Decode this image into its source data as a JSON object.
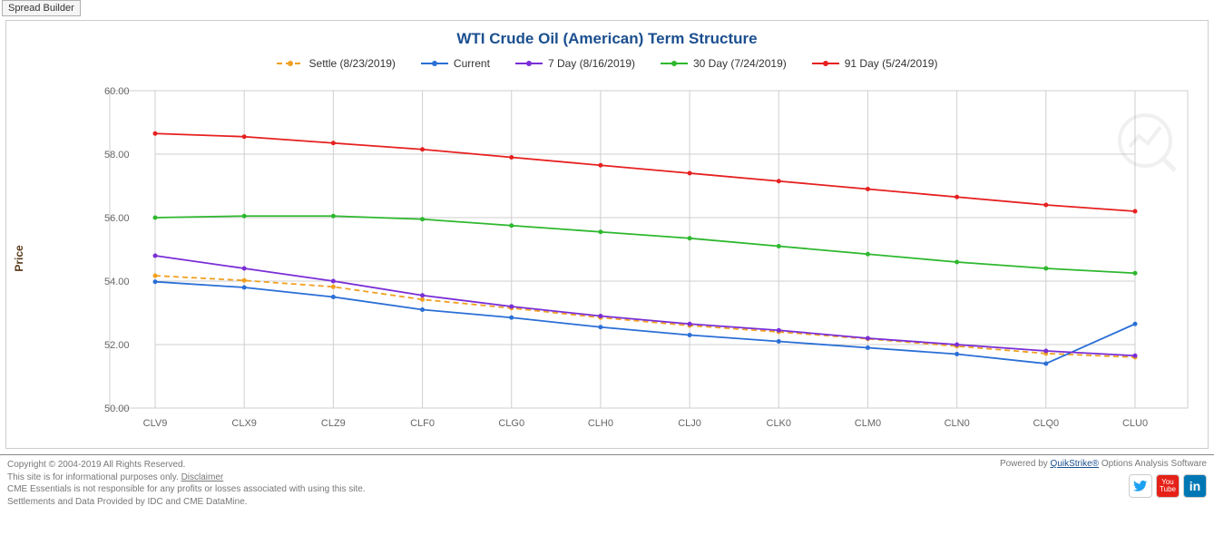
{
  "toolbar": {
    "spread_builder_label": "Spread Builder"
  },
  "chart": {
    "title": "WTI Crude Oil (American) Term Structure",
    "y_axis_label": "Price",
    "y_axis_label_color": "#5a3a1a",
    "categories": [
      "CLV9",
      "CLX9",
      "CLZ9",
      "CLF0",
      "CLG0",
      "CLH0",
      "CLJ0",
      "CLK0",
      "CLM0",
      "CLN0",
      "CLQ0",
      "CLU0"
    ],
    "y_min": 50.0,
    "y_max": 60.0,
    "y_tick_step": 2.0,
    "y_tick_decimals": 2,
    "grid_color": "#cfcfcf",
    "axis_color": "#888888",
    "tick_label_color": "#666666",
    "tick_label_fontsize": 11,
    "background_color": "#ffffff",
    "plot_inner_width": 1080,
    "plot_inner_height": 350,
    "plot_left_pad": 120,
    "plot_right_pad": 60,
    "marker_radius": 2.5,
    "line_width": 1.8,
    "series": [
      {
        "name": "Settle (8/23/2019)",
        "color": "#f0a020",
        "dash": "6,4",
        "values": [
          54.17,
          54.02,
          53.82,
          53.42,
          53.15,
          52.85,
          52.6,
          52.4,
          52.18,
          51.95,
          51.72,
          51.6
        ]
      },
      {
        "name": "Current",
        "color": "#2a6fd6",
        "dash": "",
        "values": [
          53.98,
          53.8,
          53.5,
          53.1,
          52.85,
          52.55,
          52.3,
          52.1,
          51.9,
          51.7,
          51.4,
          52.65
        ]
      },
      {
        "name": "7 Day (8/16/2019)",
        "color": "#7a2ed6",
        "dash": "",
        "values": [
          54.8,
          54.4,
          54.0,
          53.55,
          53.2,
          52.9,
          52.65,
          52.45,
          52.2,
          52.0,
          51.8,
          51.65
        ]
      },
      {
        "name": "30 Day (7/24/2019)",
        "color": "#2eb82e",
        "dash": "",
        "values": [
          56.0,
          56.05,
          56.05,
          55.95,
          55.75,
          55.55,
          55.35,
          55.1,
          54.85,
          54.6,
          54.4,
          54.25
        ]
      },
      {
        "name": "91 Day (5/24/2019)",
        "color": "#e62020",
        "dash": "",
        "values": [
          58.65,
          58.55,
          58.35,
          58.15,
          57.9,
          57.65,
          57.4,
          57.15,
          56.9,
          56.65,
          56.4,
          56.2
        ]
      }
    ]
  },
  "footer": {
    "copyright": "Copyright © 2004-2019 All Rights Reserved.",
    "line2_prefix": "This site is for informational purposes only. ",
    "disclaimer_label": "Disclaimer",
    "line3": "CME Essentials is not responsible for any profits or losses associated with using this site.",
    "line4": "Settlements and Data Provided by IDC and CME DataMine.",
    "powered_prefix": "Powered by ",
    "powered_link": "QuikStrike®",
    "powered_suffix": " Options Analysis Software",
    "social": {
      "twitter": "t",
      "youtube": "You\nTube",
      "linkedin": "in"
    }
  }
}
